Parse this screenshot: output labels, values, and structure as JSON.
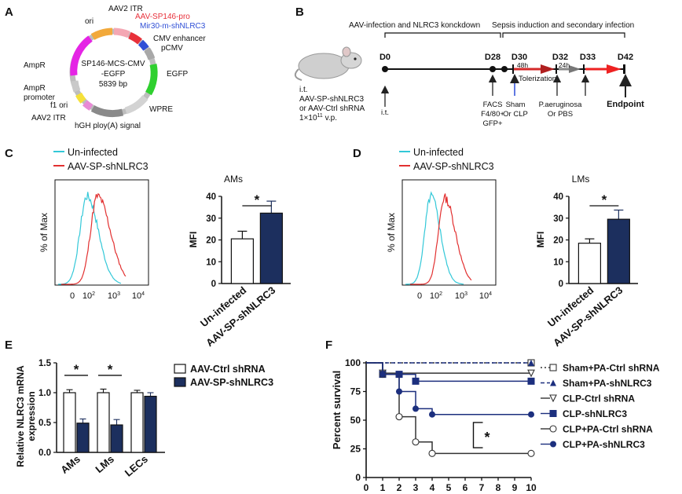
{
  "panel_labels": [
    "A",
    "B",
    "C",
    "D",
    "E",
    "F"
  ],
  "panelA": {
    "center_line1": "SP146-MCS-CMV",
    "center_line2": "-EGFP",
    "center_line3": "5839 bp",
    "features": {
      "aav2_itr_top": "AAV2 ITR",
      "ori": "ori",
      "sp146_pro": "AAV-SP146-pro",
      "mir30": "Mir30-m-shNLRC3",
      "cmv_enh": "CMV enhancer",
      "pcmv": "pCMV",
      "egfp": "EGFP",
      "wpre": "WPRE",
      "hgh": "hGH ploy(A) signal",
      "aav2_itr_bottom": "AAV2 ITR",
      "f1_ori": "f1 ori",
      "ampr_promoter": "AmpR\npromoter",
      "ampr_promoter_l1": "AmpR",
      "ampr_promoter_l2": "promoter",
      "ampr": "AmpR"
    },
    "colors": {
      "sp146": "#e8303a",
      "mir30": "#2f4fd6"
    }
  },
  "panelB": {
    "header1": "AAV-infection and NLRC3 konckdown",
    "header2": "Sepsis induction and secondary infection",
    "days": [
      "D0",
      "D28",
      "D30",
      "D32",
      "D33",
      "D42"
    ],
    "route": "i.t.",
    "treat_l1": "AAV-SP-shNLRC3",
    "treat_l2": "or AAV-Ctrl shRNA",
    "treat_l3": "1×10",
    "treat_l3_sup": "11",
    "treat_l3_end": " v.p.",
    "it_label": "i.t.",
    "facs_l1": "FACS",
    "facs_l2": "F4/80+",
    "facs_l3": "GFP+",
    "h48": "48h",
    "h24": "24h",
    "tolerization": "Tolerization",
    "sham_l1": "Sham",
    "sham_l2": "Or CLP",
    "pa_l1": "P.aeruginosa",
    "pa_l2": "Or PBS",
    "endpoint": "Endpoint"
  },
  "panelC": {
    "legend": [
      "Un-infected",
      "AAV-SP-shNLRC3"
    ],
    "hist_ylabel": "% of Max",
    "hist_xticks": [
      "0",
      "10",
      "10",
      "10"
    ],
    "hist_xsup": [
      "",
      "2",
      "3",
      "4"
    ],
    "bar_title": "AMs",
    "bar_ylabel": "MFI",
    "star": "*"
  },
  "panelD": {
    "legend": [
      "Un-infected",
      "AAV-SP-shNLRC3"
    ],
    "hist_ylabel": "% of Max",
    "hist_xticks": [
      "0",
      "10",
      "10",
      "10"
    ],
    "hist_xsup": [
      "",
      "2",
      "3",
      "4"
    ],
    "bar_title": "LMs",
    "bar_ylabel": "MFI",
    "star": "*"
  },
  "panelE": {
    "ylabel_l1": "Relative NLRC3 mRNA",
    "ylabel_l2": "expression",
    "legend": [
      "AAV-Ctrl shRNA",
      "AAV-SP-shNLRC3"
    ],
    "stars": [
      "*",
      "*"
    ]
  },
  "panelF": {
    "ylabel": "Percent survival",
    "legend": [
      "Sham+PA-Ctrl shRNA",
      "Sham+PA-shNLRC3",
      "CLP-Ctrl shRNA",
      "CLP-shNLRC3",
      "CLP+PA-Ctrl shRNA",
      "CLP+PA-shNLRC3"
    ],
    "star": "*"
  },
  "chart_data": [
    {
      "id": "C-bar",
      "type": "bar",
      "title": "AMs",
      "categories": [
        "Un-infected",
        "AAV-SP-shNLRC3"
      ],
      "values": [
        20.5,
        32.3
      ],
      "errors": [
        3.5,
        5.5
      ],
      "ylabel": "MFI",
      "ylim": [
        0,
        40
      ],
      "yticks": [
        0,
        10,
        20,
        30,
        40
      ],
      "colors": [
        "#ffffff",
        "#1c2f5e"
      ]
    },
    {
      "id": "D-bar",
      "type": "bar",
      "title": "LMs",
      "categories": [
        "Un-infected",
        "AAV-SP-shNLRC3"
      ],
      "values": [
        18.5,
        29.5
      ],
      "errors": [
        2.0,
        4.2
      ],
      "ylabel": "MFI",
      "ylim": [
        0,
        40
      ],
      "yticks": [
        0,
        10,
        20,
        30,
        40
      ],
      "colors": [
        "#ffffff",
        "#1c2f5e"
      ]
    },
    {
      "id": "E-bar",
      "type": "bar",
      "categories": [
        "AMs",
        "LMs",
        "LECs"
      ],
      "series": [
        {
          "name": "AAV-Ctrl shRNA",
          "values": [
            1.0,
            1.0,
            1.0
          ],
          "errors": [
            0.05,
            0.06,
            0.04
          ]
        },
        {
          "name": "AAV-SP-shNLRC3",
          "values": [
            0.49,
            0.46,
            0.94
          ],
          "errors": [
            0.07,
            0.09,
            0.06
          ]
        }
      ],
      "ylim": [
        0,
        1.5
      ],
      "yticks": [
        "0.0",
        "0.5",
        "1.0",
        "1.5"
      ]
    },
    {
      "id": "F-survival",
      "type": "line",
      "xlim": [
        0,
        10
      ],
      "ylim": [
        0,
        100
      ],
      "xticks": [
        "0",
        "1",
        "2",
        "3",
        "4",
        "5",
        "6",
        "7",
        "8",
        "9",
        "10"
      ],
      "yticks": [
        "0",
        "25",
        "50",
        "75",
        "100"
      ],
      "series": [
        {
          "name": "Sham+PA-Ctrl shRNA",
          "x": [
            0,
            10
          ],
          "y": [
            100,
            100
          ]
        },
        {
          "name": "Sham+PA-shNLRC3",
          "x": [
            0,
            10
          ],
          "y": [
            100,
            100
          ]
        },
        {
          "name": "CLP-Ctrl shRNA",
          "x": [
            0,
            1,
            10
          ],
          "y": [
            100,
            91,
            91
          ]
        },
        {
          "name": "CLP-shNLRC3",
          "x": [
            0,
            1,
            2,
            3,
            10
          ],
          "y": [
            100,
            90,
            90,
            84,
            84
          ]
        },
        {
          "name": "CLP+PA-Ctrl shRNA",
          "x": [
            0,
            1,
            2,
            3,
            4,
            10
          ],
          "y": [
            100,
            90,
            53,
            31,
            21,
            21
          ]
        },
        {
          "name": "CLP+PA-shNLRC3",
          "x": [
            0,
            1,
            2,
            3,
            4,
            10
          ],
          "y": [
            100,
            90,
            75,
            60,
            55,
            55
          ]
        }
      ]
    }
  ]
}
